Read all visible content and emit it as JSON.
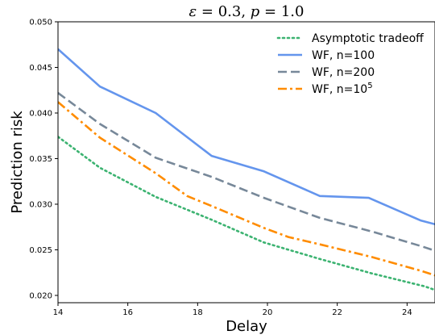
{
  "chart_data": {
    "type": "line",
    "title_parts": {
      "eps_symbol": "ε",
      "eps_eq": " = 0.3, ",
      "p_symbol": "p",
      "p_eq": " = 1.0"
    },
    "xlabel": "Delay",
    "ylabel": "Prediction risk",
    "xlim": [
      14,
      24.8
    ],
    "ylim": [
      0.0192,
      0.05
    ],
    "xticks": [
      14,
      16,
      18,
      20,
      22,
      24
    ],
    "yticks": [
      0.02,
      0.025,
      0.03,
      0.035,
      0.04,
      0.045,
      0.05
    ],
    "ytick_labels": [
      "0.020",
      "0.025",
      "0.030",
      "0.035",
      "0.040",
      "0.045",
      "0.050"
    ],
    "legend_position": "top-right",
    "series": [
      {
        "name": "Asymptotic tradeoff",
        "label_main": "Asymptotic tradeoff",
        "label_sup": "",
        "color": "#3cb371",
        "dash": "2,4",
        "linecap": "round",
        "x": [
          14,
          15.2,
          16.8,
          18.4,
          19.9,
          21.5,
          23.0,
          24.5,
          24.8
        ],
        "values": [
          0.0374,
          0.034,
          0.0308,
          0.0283,
          0.0258,
          0.024,
          0.0224,
          0.021,
          0.0206
        ]
      },
      {
        "name": "WF, n=100",
        "label_main": "WF, n=100",
        "label_sup": "",
        "color": "#6495ed",
        "dash": "",
        "linecap": "butt",
        "x": [
          14,
          15.2,
          16.8,
          18.4,
          19.9,
          21.5,
          22.9,
          24.4,
          24.8
        ],
        "values": [
          0.047,
          0.0429,
          0.04,
          0.0353,
          0.0336,
          0.0309,
          0.0307,
          0.0282,
          0.0278
        ]
      },
      {
        "name": "WF, n=200",
        "label_main": "WF, n=200",
        "label_sup": "",
        "color": "#778899",
        "dash": "11,5",
        "linecap": "butt",
        "x": [
          14,
          15.2,
          16.8,
          18.4,
          19.9,
          21.5,
          23.0,
          24.4,
          24.8
        ],
        "values": [
          0.0422,
          0.0388,
          0.0351,
          0.033,
          0.0307,
          0.0285,
          0.027,
          0.0254,
          0.0249
        ]
      },
      {
        "name": "WF, n=10^5",
        "label_main": "WF, n=10",
        "label_sup": "5",
        "color": "#ff8c00",
        "dash": "11,4,3,4",
        "linecap": "butt",
        "x": [
          14,
          15.2,
          16.8,
          17.7,
          18.4,
          19.9,
          20.6,
          21.5,
          23.0,
          24.4,
          24.8
        ],
        "values": [
          0.0412,
          0.0373,
          0.0334,
          0.0309,
          0.0298,
          0.0274,
          0.0264,
          0.0256,
          0.0242,
          0.0227,
          0.0222
        ]
      }
    ]
  }
}
